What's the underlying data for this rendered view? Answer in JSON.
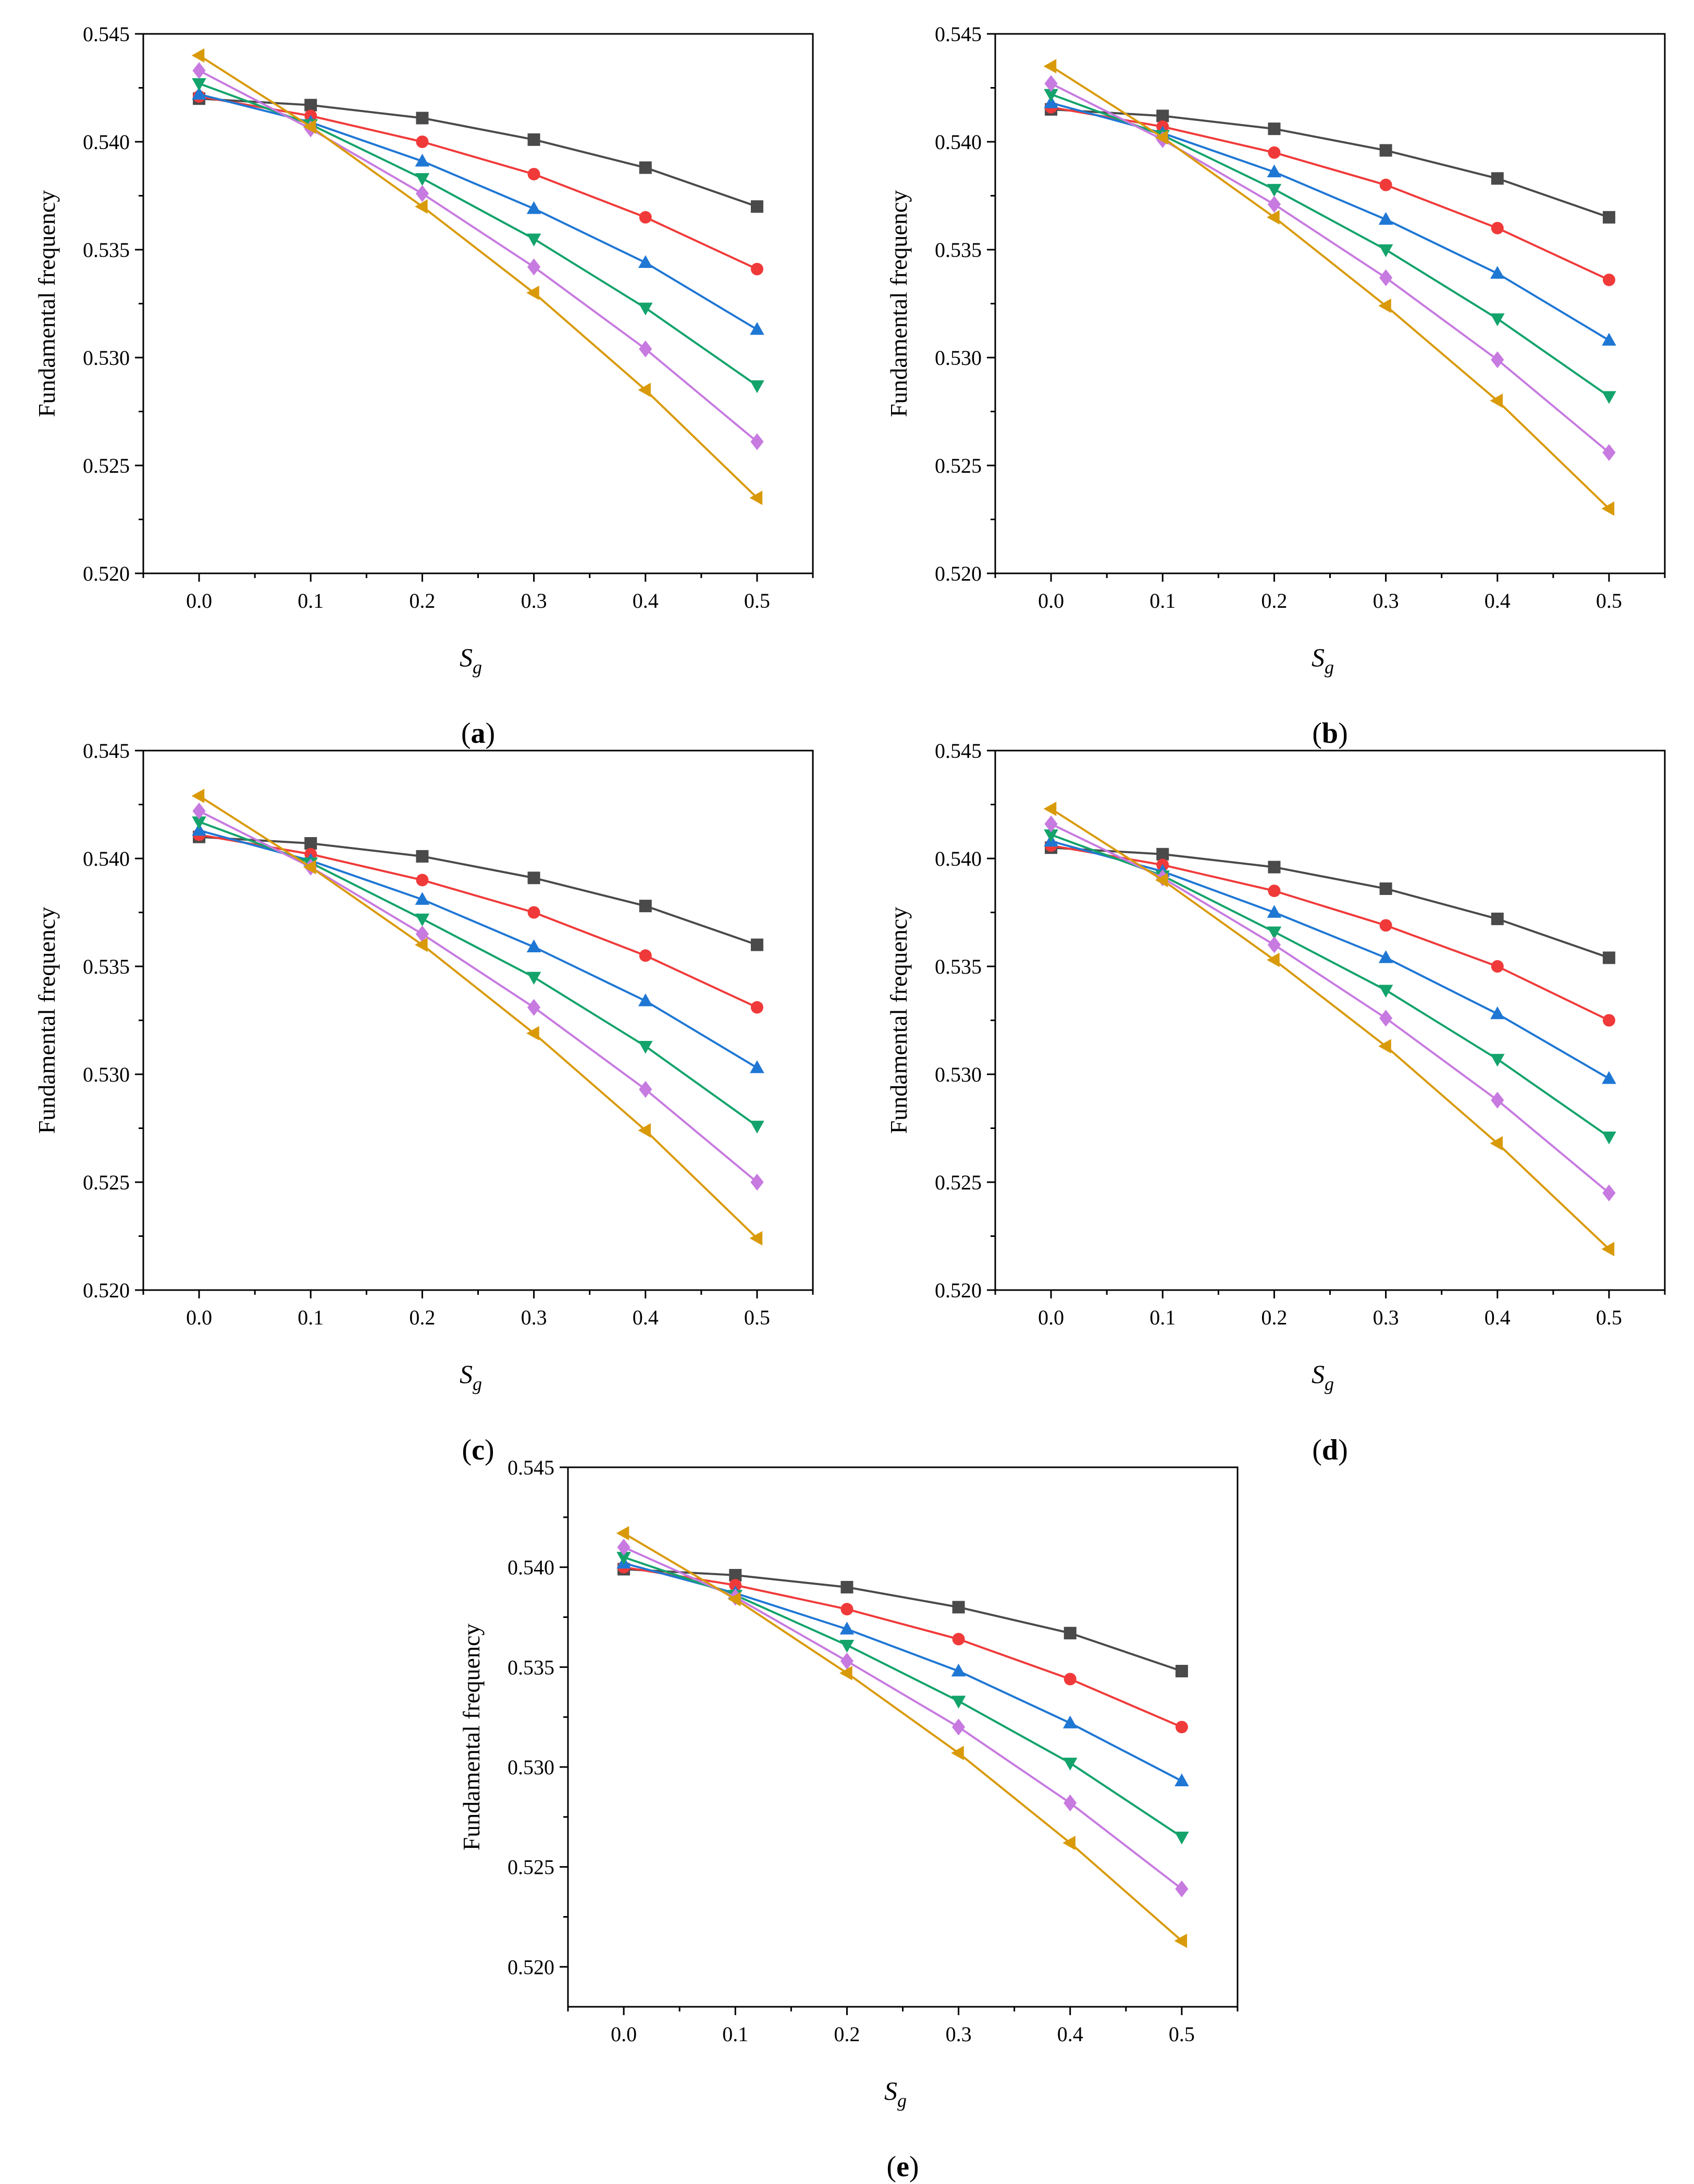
{
  "figure": {
    "panel_labels": [
      "a",
      "b",
      "c",
      "d",
      "e"
    ]
  },
  "styles": {
    "series_colors": [
      "#4a4a4a",
      "#f03a3a",
      "#1f77d4",
      "#13a36b",
      "#c77ae0",
      "#d99a0a"
    ],
    "series_markers": [
      "square",
      "circle",
      "triangle-up",
      "triangle-down",
      "diamond",
      "triangle-left"
    ]
  },
  "chart_data": [
    {
      "type": "line",
      "panel": "a",
      "xlabel_main": "S",
      "xlabel_sub": "g",
      "ylabel": "Fundamental frequency",
      "xlim": [
        -0.05,
        0.55
      ],
      "ylim": [
        0.52,
        0.545
      ],
      "xticks": [
        "0.0",
        "0.1",
        "0.2",
        "0.3",
        "0.4",
        "0.5"
      ],
      "yticks": [
        "0.520",
        "0.525",
        "0.530",
        "0.535",
        "0.540",
        "0.545"
      ],
      "grid": false,
      "x": [
        0.0,
        0.1,
        0.2,
        0.3,
        0.4,
        0.5
      ],
      "series": [
        {
          "values": [
            0.542,
            0.5417,
            0.5411,
            0.5401,
            0.5388,
            0.537
          ]
        },
        {
          "values": [
            0.5421,
            0.5412,
            0.54,
            0.5385,
            0.5365,
            0.5341
          ]
        },
        {
          "values": [
            0.5422,
            0.5409,
            0.5391,
            0.5369,
            0.5344,
            0.5313
          ]
        },
        {
          "values": [
            0.5427,
            0.5408,
            0.5383,
            0.5355,
            0.5323,
            0.5287
          ]
        },
        {
          "values": [
            0.5433,
            0.5406,
            0.5376,
            0.5342,
            0.5304,
            0.5261
          ]
        },
        {
          "values": [
            0.544,
            0.5407,
            0.537,
            0.533,
            0.5285,
            0.5235
          ]
        }
      ]
    },
    {
      "type": "line",
      "panel": "b",
      "xlabel_main": "S",
      "xlabel_sub": "g",
      "ylabel": "Fundamental frequency",
      "xlim": [
        -0.05,
        0.55
      ],
      "ylim": [
        0.52,
        0.545
      ],
      "xticks": [
        "0.0",
        "0.1",
        "0.2",
        "0.3",
        "0.4",
        "0.5"
      ],
      "yticks": [
        "0.520",
        "0.525",
        "0.530",
        "0.535",
        "0.540",
        "0.545"
      ],
      "grid": false,
      "x": [
        0.0,
        0.1,
        0.2,
        0.3,
        0.4,
        0.5
      ],
      "series": [
        {
          "values": [
            0.5415,
            0.5412,
            0.5406,
            0.5396,
            0.5383,
            0.5365
          ]
        },
        {
          "values": [
            0.5416,
            0.5407,
            0.5395,
            0.538,
            0.536,
            0.5336
          ]
        },
        {
          "values": [
            0.5418,
            0.5404,
            0.5386,
            0.5364,
            0.5339,
            0.5308
          ]
        },
        {
          "values": [
            0.5422,
            0.5403,
            0.5378,
            0.535,
            0.5318,
            0.5282
          ]
        },
        {
          "values": [
            0.5427,
            0.5401,
            0.5371,
            0.5337,
            0.5299,
            0.5256
          ]
        },
        {
          "values": [
            0.5435,
            0.5402,
            0.5365,
            0.5324,
            0.528,
            0.523
          ]
        }
      ]
    },
    {
      "type": "line",
      "panel": "c",
      "xlabel_main": "S",
      "xlabel_sub": "g",
      "ylabel": "Fundamental frequency",
      "xlim": [
        -0.05,
        0.55
      ],
      "ylim": [
        0.52,
        0.545
      ],
      "xticks": [
        "0.0",
        "0.1",
        "0.2",
        "0.3",
        "0.4",
        "0.5"
      ],
      "yticks": [
        "0.520",
        "0.525",
        "0.530",
        "0.535",
        "0.540",
        "0.545"
      ],
      "grid": false,
      "x": [
        0.0,
        0.1,
        0.2,
        0.3,
        0.4,
        0.5
      ],
      "series": [
        {
          "values": [
            0.541,
            0.5407,
            0.5401,
            0.5391,
            0.5378,
            0.536
          ]
        },
        {
          "values": [
            0.5411,
            0.5402,
            0.539,
            0.5375,
            0.5355,
            0.5331
          ]
        },
        {
          "values": [
            0.5413,
            0.5399,
            0.5381,
            0.5359,
            0.5334,
            0.5303
          ]
        },
        {
          "values": [
            0.5417,
            0.5398,
            0.5372,
            0.5345,
            0.5313,
            0.5276
          ]
        },
        {
          "values": [
            0.5422,
            0.5396,
            0.5365,
            0.5331,
            0.5293,
            0.525
          ]
        },
        {
          "values": [
            0.5429,
            0.5396,
            0.536,
            0.5319,
            0.5274,
            0.5224
          ]
        }
      ]
    },
    {
      "type": "line",
      "panel": "d",
      "xlabel_main": "S",
      "xlabel_sub": "g",
      "ylabel": "Fundamental frequency",
      "xlim": [
        -0.05,
        0.55
      ],
      "ylim": [
        0.52,
        0.545
      ],
      "xticks": [
        "0.0",
        "0.1",
        "0.2",
        "0.3",
        "0.4",
        "0.5"
      ],
      "yticks": [
        "0.520",
        "0.525",
        "0.530",
        "0.535",
        "0.540",
        "0.545"
      ],
      "grid": false,
      "x": [
        0.0,
        0.1,
        0.2,
        0.3,
        0.4,
        0.5
      ],
      "series": [
        {
          "values": [
            0.5405,
            0.5402,
            0.5396,
            0.5386,
            0.5372,
            0.5354
          ]
        },
        {
          "values": [
            0.5406,
            0.5397,
            0.5385,
            0.5369,
            0.535,
            0.5325
          ]
        },
        {
          "values": [
            0.5408,
            0.5394,
            0.5375,
            0.5354,
            0.5328,
            0.5298
          ]
        },
        {
          "values": [
            0.5411,
            0.5392,
            0.5366,
            0.5339,
            0.5307,
            0.5271
          ]
        },
        {
          "values": [
            0.5416,
            0.5391,
            0.536,
            0.5326,
            0.5288,
            0.5245
          ]
        },
        {
          "values": [
            0.5423,
            0.539,
            0.5353,
            0.5313,
            0.5268,
            0.5219
          ]
        }
      ]
    },
    {
      "type": "line",
      "panel": "e",
      "xlabel_main": "S",
      "xlabel_sub": "g",
      "ylabel": "Fundamental frequency",
      "xlim": [
        -0.05,
        0.55
      ],
      "ylim": [
        0.518,
        0.545
      ],
      "xticks": [
        "0.0",
        "0.1",
        "0.2",
        "0.3",
        "0.4",
        "0.5"
      ],
      "yticks": [
        "0.520",
        "0.525",
        "0.530",
        "0.535",
        "0.540",
        "0.545"
      ],
      "grid": false,
      "x": [
        0.0,
        0.1,
        0.2,
        0.3,
        0.4,
        0.5
      ],
      "series": [
        {
          "values": [
            0.5399,
            0.5396,
            0.539,
            0.538,
            0.5367,
            0.5348
          ]
        },
        {
          "values": [
            0.54,
            0.5391,
            0.5379,
            0.5364,
            0.5344,
            0.532
          ]
        },
        {
          "values": [
            0.5402,
            0.5387,
            0.5369,
            0.5348,
            0.5322,
            0.5293
          ]
        },
        {
          "values": [
            0.5405,
            0.5386,
            0.5361,
            0.5333,
            0.5302,
            0.5265
          ]
        },
        {
          "values": [
            0.541,
            0.5385,
            0.5353,
            0.532,
            0.5282,
            0.5239
          ]
        },
        {
          "values": [
            0.5417,
            0.5384,
            0.5347,
            0.5307,
            0.5262,
            0.5213
          ]
        }
      ]
    }
  ]
}
